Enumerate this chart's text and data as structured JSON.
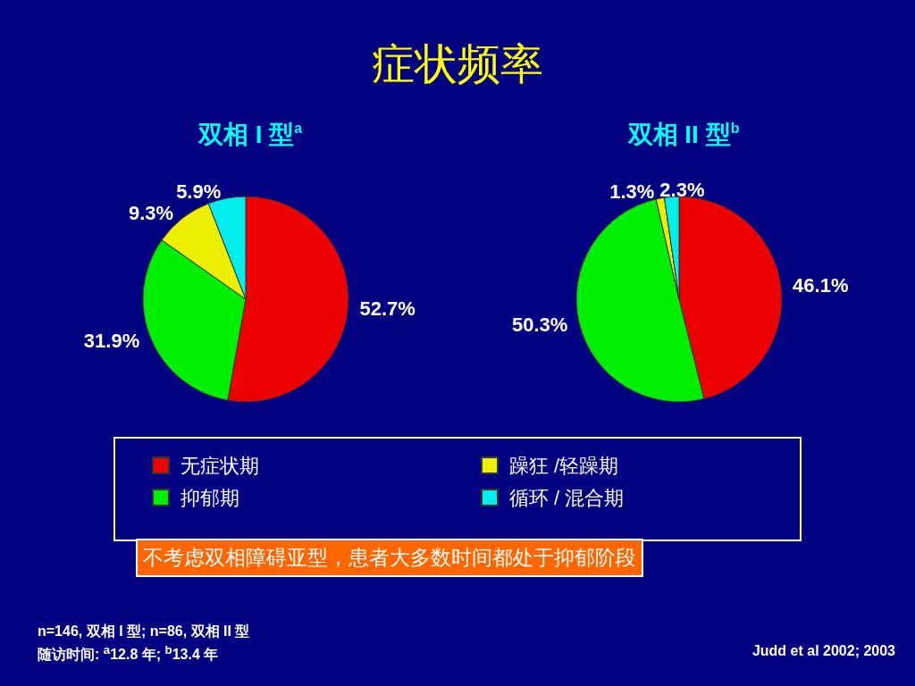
{
  "chart_data": [
    {
      "type": "pie",
      "categories": [
        "无症状期",
        "抑郁期",
        "躁狂 /轻躁期",
        "循环 / 混合期"
      ],
      "colors": [
        "#ee0000",
        "#00ee00",
        "#eeee00",
        "#00eeee"
      ],
      "legend": "bottom",
      "series": [
        {
          "name": "双相 I 型$^{a}$",
          "values": [
            52.7,
            31.9,
            9.3,
            5.9
          ],
          "value_labels": [
            "52.7%",
            "31.9%",
            "9.3%",
            "5.9%"
          ]
        },
        {
          "name": "双相 II 型$^{b}$",
          "values": [
            46.1,
            50.3,
            1.3,
            2.3
          ],
          "value_labels": [
            "46.1%",
            "50.3%",
            "1.3%",
            "2.3%"
          ]
        }
      ]
    },
    {
      "type": "other",
      "title": "症状频率",
      "annotations": [
        "不考虑双相障碍亚型，患者大多数时间都处于抑郁阶段",
        "n=146, 双相 I 型; n=86, 双相 II 型",
        "随访时间: $^{a}$12.8 年; $^{b}$13.4 年",
        "Judd et al 2002; 2003"
      ]
    }
  ]
}
